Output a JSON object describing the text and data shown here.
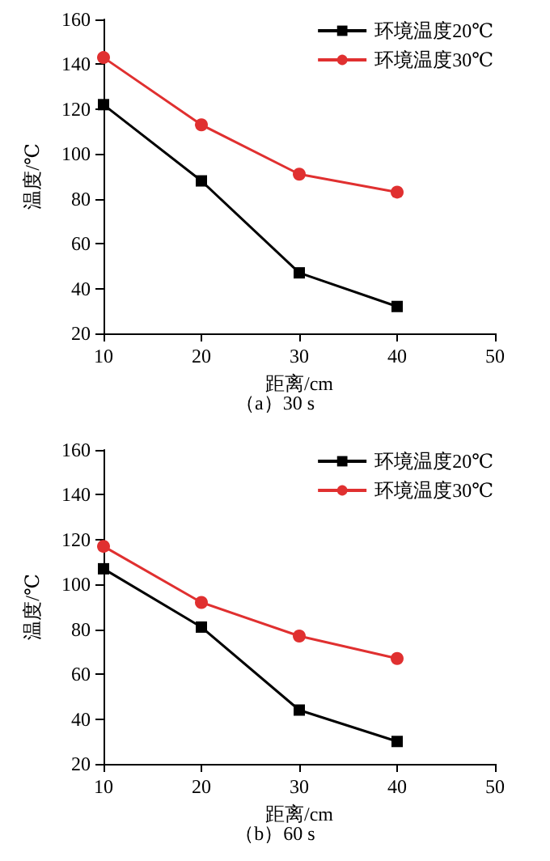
{
  "chart_data": [
    {
      "type": "line",
      "title": "（a）30 s",
      "xlabel": "距离/cm",
      "ylabel": "温度/℃",
      "x": [
        10,
        20,
        30,
        40
      ],
      "xlim": [
        10,
        50
      ],
      "xticks": [
        10,
        20,
        30,
        40,
        50
      ],
      "ylim": [
        20,
        160
      ],
      "yticks": [
        20,
        40,
        60,
        80,
        100,
        120,
        140,
        160
      ],
      "grid": false,
      "legend": "top right",
      "series": [
        {
          "name": "环境温度20℃",
          "color": "#000000",
          "marker": "square",
          "values": [
            122,
            88,
            47,
            32
          ]
        },
        {
          "name": "环境温度30℃",
          "color": "#e03030",
          "marker": "circle",
          "values": [
            143,
            113,
            91,
            83
          ]
        }
      ]
    },
    {
      "type": "line",
      "title": "（b）60 s",
      "xlabel": "距离/cm",
      "ylabel": "温度/℃",
      "x": [
        10,
        20,
        30,
        40
      ],
      "xlim": [
        10,
        50
      ],
      "xticks": [
        10,
        20,
        30,
        40,
        50
      ],
      "ylim": [
        20,
        160
      ],
      "yticks": [
        20,
        40,
        60,
        80,
        100,
        120,
        140,
        160
      ],
      "grid": false,
      "legend": "top right",
      "series": [
        {
          "name": "环境温度20℃",
          "color": "#000000",
          "marker": "square",
          "values": [
            107,
            81,
            44,
            30
          ]
        },
        {
          "name": "环境温度30℃",
          "color": "#e03030",
          "marker": "circle",
          "values": [
            117,
            92,
            77,
            67
          ]
        }
      ]
    }
  ]
}
